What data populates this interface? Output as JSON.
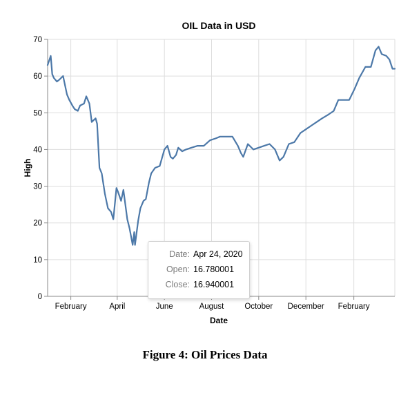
{
  "figure_caption": "Figure 4: Oil Prices Data",
  "chart_data": {
    "type": "line",
    "title": "OIL Data in USD",
    "xlabel": "Date",
    "ylabel": "High",
    "ylim": [
      0,
      70
    ],
    "y_ticks": [
      0,
      10,
      20,
      30,
      40,
      50,
      60,
      70
    ],
    "x_domain": [
      "2020-01-02",
      "2021-03-26"
    ],
    "x_ticks": [
      {
        "date": "2020-02-01",
        "label": "February"
      },
      {
        "date": "2020-04-01",
        "label": "April"
      },
      {
        "date": "2020-06-01",
        "label": "June"
      },
      {
        "date": "2020-08-01",
        "label": "August"
      },
      {
        "date": "2020-10-01",
        "label": "October"
      },
      {
        "date": "2020-12-01",
        "label": "December"
      },
      {
        "date": "2021-02-01",
        "label": "February"
      }
    ],
    "grid": true,
    "series_color": "#4c78a8",
    "series": [
      {
        "x": [
          "2020-01-02",
          "2020-01-06",
          "2020-01-08",
          "2020-01-10",
          "2020-01-14",
          "2020-01-17",
          "2020-01-22",
          "2020-01-27",
          "2020-01-30",
          "2020-02-03",
          "2020-02-06",
          "2020-02-10",
          "2020-02-13",
          "2020-02-18",
          "2020-02-21",
          "2020-02-25",
          "2020-02-28",
          "2020-03-04",
          "2020-03-06",
          "2020-03-09",
          "2020-03-12",
          "2020-03-16",
          "2020-03-18",
          "2020-03-20",
          "2020-03-24",
          "2020-03-27",
          "2020-03-31",
          "2020-04-02",
          "2020-04-06",
          "2020-04-09",
          "2020-04-14",
          "2020-04-17",
          "2020-04-21",
          "2020-04-23",
          "2020-04-24",
          "2020-04-28",
          "2020-05-01",
          "2020-05-05",
          "2020-05-08",
          "2020-05-12",
          "2020-05-15",
          "2020-05-20",
          "2020-05-26",
          "2020-06-01",
          "2020-06-05",
          "2020-06-09",
          "2020-06-12",
          "2020-06-16",
          "2020-06-19",
          "2020-06-24",
          "2020-06-29",
          "2020-07-06",
          "2020-07-14",
          "2020-07-22",
          "2020-07-30",
          "2020-08-06",
          "2020-08-12",
          "2020-08-20",
          "2020-08-28",
          "2020-09-04",
          "2020-09-08",
          "2020-09-11",
          "2020-09-17",
          "2020-09-24",
          "2020-10-01",
          "2020-10-08",
          "2020-10-15",
          "2020-10-22",
          "2020-10-28",
          "2020-11-02",
          "2020-11-09",
          "2020-11-16",
          "2020-11-24",
          "2020-12-01",
          "2020-12-08",
          "2020-12-15",
          "2020-12-22",
          "2020-12-30",
          "2021-01-06",
          "2021-01-12",
          "2021-01-19",
          "2021-01-26",
          "2021-02-02",
          "2021-02-08",
          "2021-02-16",
          "2021-02-23",
          "2021-03-01",
          "2021-03-05",
          "2021-03-09",
          "2021-03-15",
          "2021-03-19",
          "2021-03-23",
          "2021-03-26"
        ],
        "y": [
          63.0,
          65.5,
          60.5,
          59.5,
          58.5,
          59.0,
          60.0,
          55.0,
          53.5,
          52.0,
          51.0,
          50.5,
          52.0,
          52.5,
          54.5,
          52.5,
          47.5,
          48.5,
          47.0,
          35.0,
          33.5,
          28.0,
          26.0,
          24.0,
          23.0,
          21.0,
          29.5,
          28.5,
          26.0,
          29.0,
          21.0,
          18.5,
          14.0,
          17.5,
          14.0,
          20.5,
          24.0,
          26.0,
          26.5,
          31.0,
          33.5,
          35.0,
          35.5,
          40.0,
          41.0,
          38.0,
          37.5,
          38.5,
          40.5,
          39.5,
          40.0,
          40.5,
          41.0,
          41.0,
          42.5,
          43.0,
          43.5,
          43.5,
          43.5,
          41.0,
          39.0,
          38.0,
          41.5,
          40.0,
          40.5,
          41.0,
          41.5,
          40.0,
          37.0,
          38.0,
          41.5,
          42.0,
          44.5,
          45.5,
          46.5,
          47.5,
          48.5,
          49.5,
          50.5,
          53.5,
          53.5,
          53.5,
          56.5,
          59.5,
          62.5,
          62.5,
          67.0,
          68.0,
          66.0,
          65.5,
          64.5,
          62.0,
          62.0
        ]
      }
    ],
    "tooltip": {
      "rows": [
        {
          "key": "Date:",
          "value": "Apr 24, 2020"
        },
        {
          "key": "Open:",
          "value": "16.780001"
        },
        {
          "key": "Close:",
          "value": "16.940001"
        }
      ]
    }
  }
}
